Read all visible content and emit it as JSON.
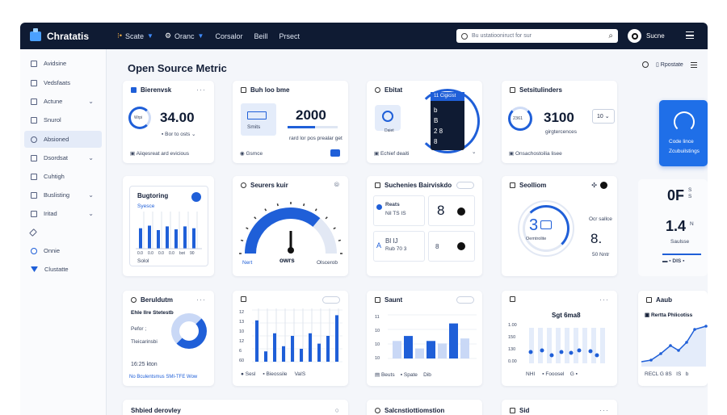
{
  "app": {
    "name": "Chratatis"
  },
  "nav": [
    {
      "label": "Scate",
      "icon": "dots-icon"
    },
    {
      "label": "Oranc",
      "icon": "gear-icon"
    },
    {
      "label": "Corsalor"
    },
    {
      "label": "Beill"
    },
    {
      "label": "Prsect"
    }
  ],
  "search": {
    "placeholder": "Bu ustatiooniruct for sur"
  },
  "user": {
    "name": "Sucne"
  },
  "sidebar": {
    "items": [
      {
        "label": "Avidsine"
      },
      {
        "label": "Vedsfaats"
      },
      {
        "label": "Actune",
        "chevron": "⌄"
      },
      {
        "label": "Snurol"
      },
      {
        "label": "Absioned"
      },
      {
        "label": "Dsordsat",
        "chevron": "⌄"
      },
      {
        "label": "Cuhtigh"
      },
      {
        "label": "Buslisting",
        "chevron": "⌄"
      },
      {
        "label": "Iritad",
        "chevron": "⌄"
      },
      {
        "label": ""
      },
      {
        "label": "Onnie"
      },
      {
        "label": "Clustatte"
      }
    ]
  },
  "page": {
    "title": "Open Source Metric",
    "action_label": "Rpostate"
  },
  "cards": {
    "c1": {
      "title": "Bierenvsk",
      "value": "34.00",
      "ring_label": "Wrpi",
      "sub": "Bor to osts",
      "footer": "Aiiqesreat ard evicious"
    },
    "c2": {
      "title": "Buh loo bme",
      "value": "2000",
      "box_label": "Smits",
      "sub": "rard lor pos prealar get",
      "footer": "Gsmce",
      "progress": 0.55
    },
    "c3": {
      "title": "Ebitat",
      "ring_label": "Daiet",
      "footer": "Echief deaiti",
      "popup_title": "11 Cigicist",
      "popup_rows": [
        "b",
        "B",
        "2 8",
        "8"
      ]
    },
    "c4": {
      "title": "Setsitulinders",
      "value": "3100",
      "ring_label": "2361",
      "sub": "girgtercences",
      "select": "10",
      "footer": "Onsachostoilia lisee"
    },
    "c5": {
      "title": "Code lince",
      "sub": "Zcubuilstings"
    },
    "c6": {
      "title": "Bugtoring",
      "sub": "Syesce",
      "footer": "Solol",
      "axis": [
        "0.0",
        "0.0",
        "0.0",
        "0.0",
        "bot",
        "90"
      ]
    },
    "c7": {
      "title": "Seurers kuir",
      "left": "Nert",
      "center": "owrs",
      "right": "Olscerob",
      "gauge": 0.72
    },
    "c8": {
      "title": "Suchenies Bairviskdo",
      "row1_title": "Reats",
      "row1_sub": "Nil TS IS",
      "row1_value": "8",
      "row2_title": "Bl IJ",
      "row2_sub": "Rub 70 3",
      "row2_value": "8"
    },
    "c9": {
      "title": "Seolliom",
      "value": "3",
      "ring_label": "Oemtrolite",
      "legend1": "Ocr sallce",
      "big2": "8.",
      "sub2": "50 Nntr"
    },
    "c10": {
      "value1": "0F",
      "unit1": "S",
      "sub1": "S",
      "value2": "1.4",
      "unit2": "N",
      "sub2": "Saulsse",
      "footer": "DIS"
    },
    "c11": {
      "title": "Beruldutm",
      "list": [
        "Ehle Ilre Stetestb",
        "Pefor ;",
        "Tleicarinsbi",
        "16:25 kton"
      ],
      "footer": "No Bculentsmus SMI-TFE Wow"
    },
    "c12": {
      "legend": [
        "Sesl",
        "Bieossile",
        "VaIS"
      ],
      "axis": [
        "12",
        "13",
        "10",
        "12",
        "6",
        "60"
      ]
    },
    "c13": {
      "title": "Saunt",
      "axis": [
        "11",
        "10",
        "10",
        "10"
      ],
      "legend": [
        "Beuts",
        "Spate",
        "Dib"
      ]
    },
    "c14": {
      "title": "Sgt 6ma8",
      "axis": [
        "1.00",
        "150",
        "130",
        "0.00"
      ],
      "footer": [
        "NHI",
        "Fooosel",
        "G"
      ]
    },
    "c15": {
      "title": "Aaub",
      "sub": "Rertta Phlicotiss",
      "footer": [
        "RECL",
        "G 8S",
        "IS",
        "b"
      ]
    },
    "c16": {
      "title": "Shbied derovley"
    },
    "c17": {
      "title": "Salcnstiottiomstion"
    },
    "c18": {
      "title": "Sid"
    }
  },
  "colors": {
    "accent": "#1f5fd8",
    "topbar": "#0f1b33",
    "bg": "#f4f6fa"
  }
}
